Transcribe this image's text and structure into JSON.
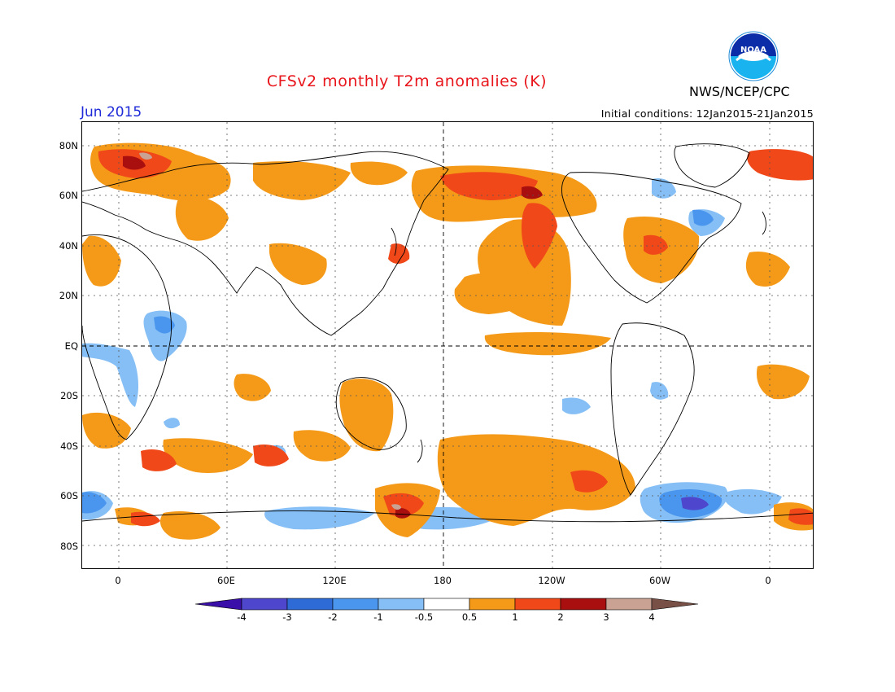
{
  "header": {
    "title": "CFSv2 monthly T2m anomalies (K)",
    "month": "Jun 2015",
    "agency": "NWS/NCEP/CPC",
    "initial_conditions": "Initial conditions: 12Jan2015-21Jan2015",
    "logo_text": "NOAA"
  },
  "axes": {
    "lat_labels": [
      "80N",
      "60N",
      "40N",
      "20N",
      "EQ",
      "20S",
      "40S",
      "60S",
      "80S"
    ],
    "lon_labels": [
      "0",
      "60E",
      "120E",
      "180",
      "120W",
      "60W",
      "0"
    ]
  },
  "colorbar": {
    "labels": [
      "-4",
      "-3",
      "-2",
      "-1",
      "-0.5",
      "0.5",
      "1",
      "2",
      "3",
      "4"
    ],
    "colors": [
      "#3a0ea8",
      "#4e46cc",
      "#2f6bd6",
      "#4a96ee",
      "#86bff5",
      "#ffffff",
      "#f49a18",
      "#f04818",
      "#a90f0f",
      "#c9a293",
      "#795046"
    ]
  },
  "colors": {
    "warm_1": "#f49a18",
    "warm_2": "#f04818",
    "warm_3": "#a90f0f",
    "warm_4": "#c9a293",
    "cool_1": "#86bff5",
    "cool_2": "#4a96ee",
    "cool_3": "#2f6bd6",
    "cool_4": "#4e46cc"
  }
}
